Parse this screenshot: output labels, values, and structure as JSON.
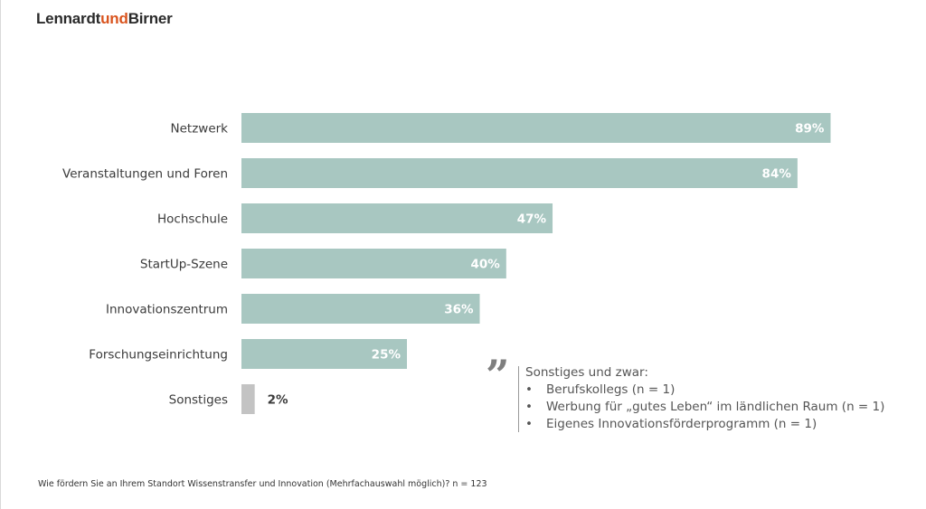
{
  "brand": {
    "part1": "Lennardt",
    "part2": "und",
    "part3": "Birner",
    "accent_color": "#d9541e"
  },
  "chart_data": {
    "type": "bar",
    "orientation": "horizontal",
    "categories": [
      "Netzwerk",
      "Veranstaltungen und Foren",
      "Hochschule",
      "StartUp-Szene",
      "Innovationszentrum",
      "Forschungseinrichtung",
      "Sonstiges"
    ],
    "values": [
      89,
      84,
      47,
      40,
      36,
      25,
      2
    ],
    "value_labels": [
      "89%",
      "84%",
      "47%",
      "40%",
      "36%",
      "25%",
      "2%"
    ],
    "unit": "%",
    "xlim": [
      0,
      100
    ],
    "grid": false,
    "bar_color": "#a8c7c1",
    "other_bar_color": "#c3c3c3"
  },
  "note": {
    "quote_glyph": "”",
    "heading": "Sonstiges und zwar:",
    "items": [
      "Berufskollegs (n = 1)",
      "Werbung für „gutes Leben“ im ländlichen Raum (n = 1)",
      "Eigenes Innovationsförderprogramm (n = 1)"
    ]
  },
  "footnote": "Wie fördern Sie an Ihrem Standort Wissenstransfer und Innovation (Mehrfachauswahl möglich)? n = 123"
}
